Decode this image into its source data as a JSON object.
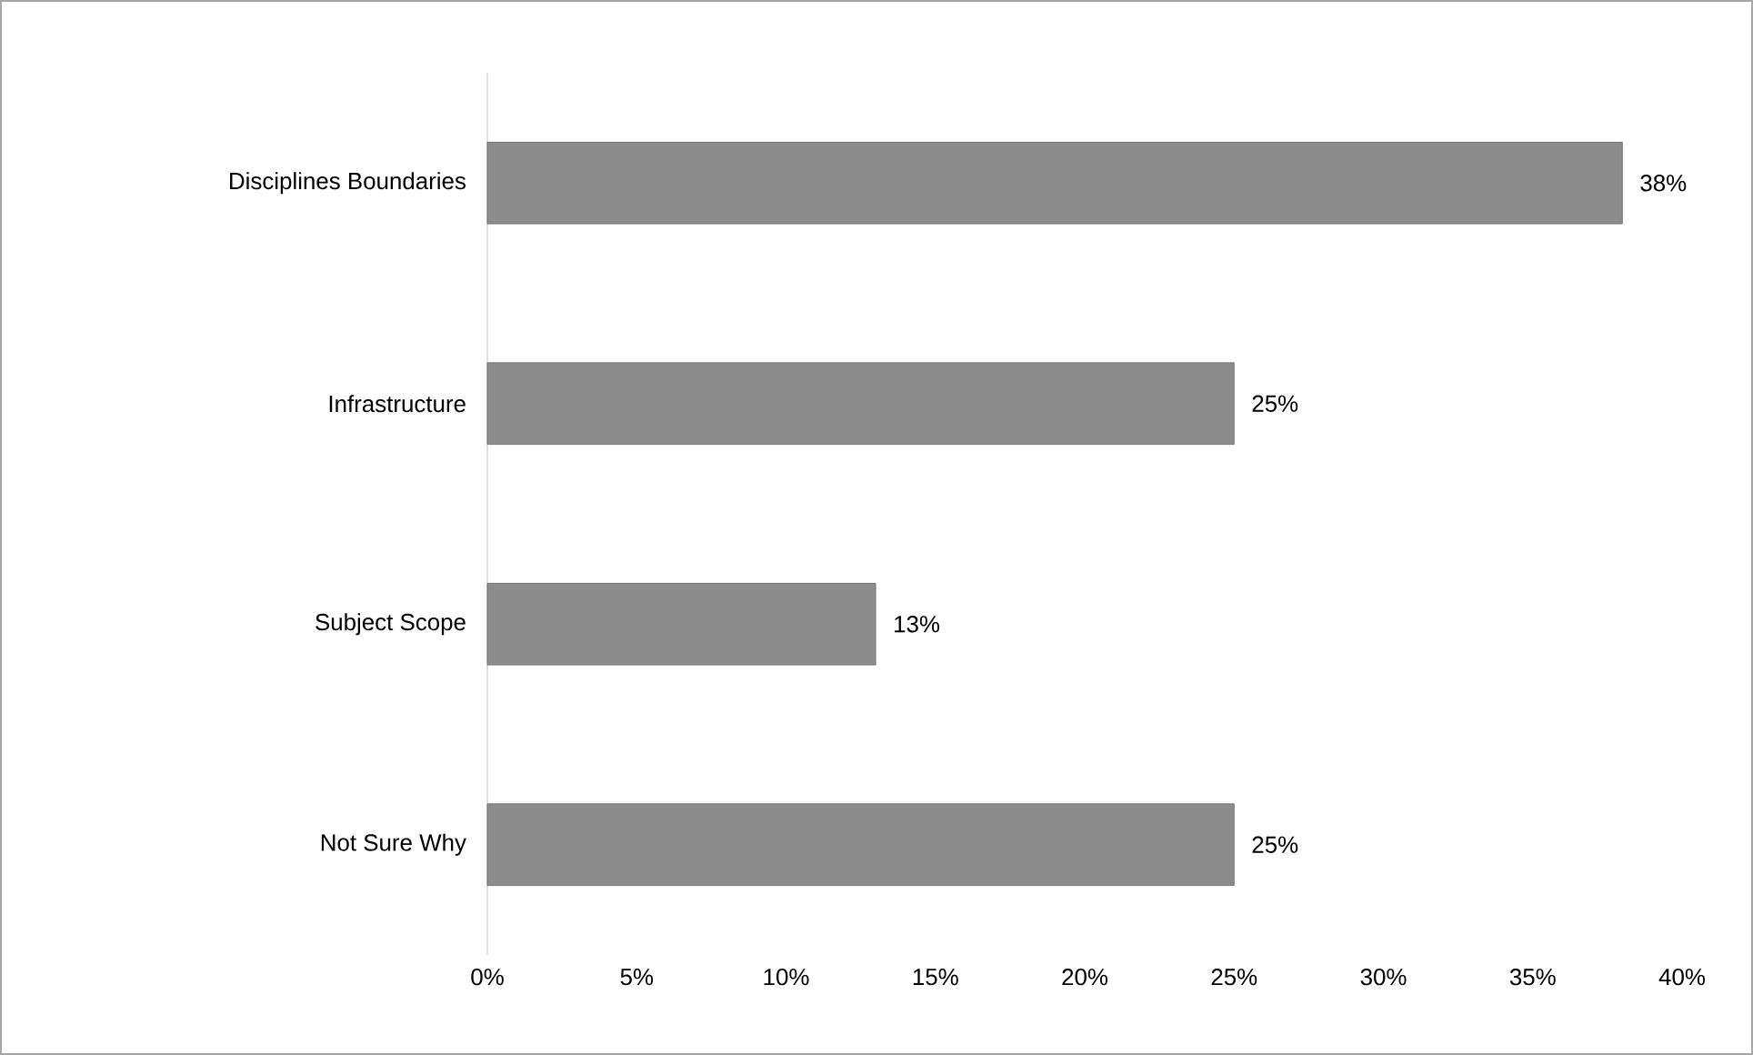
{
  "chart_data": {
    "type": "bar",
    "orientation": "horizontal",
    "categories": [
      "Disciplines Boundaries",
      "Infrastructure",
      "Subject Scope",
      "Not Sure Why"
    ],
    "values": [
      38,
      25,
      13,
      25
    ],
    "value_labels": [
      "38%",
      "25%",
      "13%",
      "25%"
    ],
    "color": "#8c8c8c",
    "xlim": [
      0,
      40
    ],
    "xticks": [
      {
        "value": 0,
        "label": "0%"
      },
      {
        "value": 5,
        "label": "5%"
      },
      {
        "value": 10,
        "label": "10%"
      },
      {
        "value": 15,
        "label": "15%"
      },
      {
        "value": 20,
        "label": "20%"
      },
      {
        "value": 25,
        "label": "25%"
      },
      {
        "value": 30,
        "label": "30%"
      },
      {
        "value": 35,
        "label": "35%"
      },
      {
        "value": 40,
        "label": "40%"
      }
    ],
    "grid": false
  }
}
